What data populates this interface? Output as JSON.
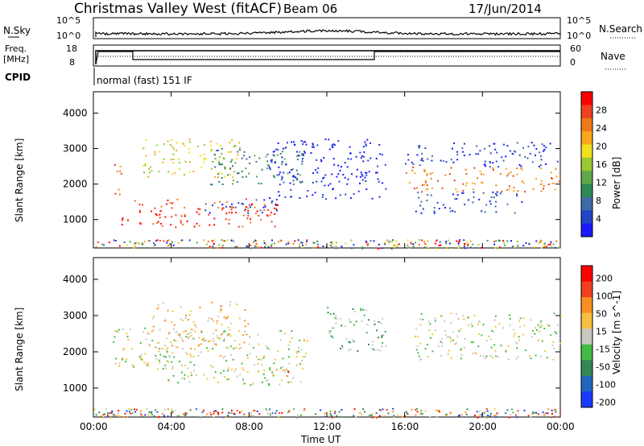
{
  "header": {
    "site": "Christmas Valley West (fitACF)",
    "beam": "Beam 06",
    "date": "17/Jun/2014"
  },
  "top_panels": {
    "nsky_label": "N.Sky",
    "nsky_ticks": [
      "10^5",
      "10^0"
    ],
    "nsearch_label": "N.Search",
    "nsearch_ticks": [
      "10^5",
      "10^0"
    ],
    "freq_label": "Freq.",
    "freq_unit": "[MHz]",
    "freq_ticks": [
      "18",
      "8"
    ],
    "nave_label": "Nave",
    "nave_ticks": [
      "60",
      "0"
    ],
    "cpid_label": "CPID",
    "cpid_mode": "normal (fast) 151 IF"
  },
  "chart_data": [
    {
      "type": "heatmap",
      "name": "power",
      "ylabel": "Slant Range [km]",
      "xlabel": "",
      "x_ticks": [
        "00:00",
        "04:00",
        "08:00",
        "12:00",
        "16:00",
        "20:00",
        "00:00"
      ],
      "y_ticks": [
        1000,
        2000,
        3000,
        4000
      ],
      "ylim": [
        200,
        4600
      ],
      "xlim_hours": [
        0,
        24
      ],
      "colorbar": {
        "label": "Power [dB]",
        "ticks": [
          "4",
          "8",
          "12",
          "16",
          "20",
          "24",
          "28"
        ],
        "colors": [
          "#1a1aff",
          "#2244c8",
          "#3f6aa8",
          "#2e8b57",
          "#5fa84a",
          "#99c830",
          "#f0e020",
          "#f8a818",
          "#f07818",
          "#f04020",
          "#ff0000"
        ]
      },
      "echo_regions": [
        {
          "t0": 1.0,
          "t1": 1.4,
          "r0": 1500,
          "r1": 2700,
          "level": 8
        },
        {
          "t0": 1.4,
          "t1": 9.5,
          "r0": 800,
          "r1": 1600,
          "level": 9
        },
        {
          "t0": 2.5,
          "t1": 7.5,
          "r0": 2200,
          "r1": 3300,
          "level": 6
        },
        {
          "t0": 6.0,
          "t1": 11.0,
          "r0": 2000,
          "r1": 3100,
          "level": 3
        },
        {
          "t0": 5.5,
          "t1": 9.5,
          "r0": 1200,
          "r1": 1600,
          "level": 1
        },
        {
          "t0": 9.0,
          "t1": 15.0,
          "r0": 1600,
          "r1": 3300,
          "level": 0
        },
        {
          "t0": 16.0,
          "t1": 24.0,
          "r0": 1800,
          "r1": 2500,
          "level": 8
        },
        {
          "t0": 16.0,
          "t1": 24.0,
          "r0": 2500,
          "r1": 3200,
          "level": 1
        },
        {
          "t0": 16.5,
          "t1": 22.0,
          "r0": 1200,
          "r1": 1800,
          "level": 1
        }
      ]
    },
    {
      "type": "heatmap",
      "name": "velocity",
      "ylabel": "Slant Range [km]",
      "xlabel": "Time UT",
      "x_ticks": [
        "00:00",
        "04:00",
        "08:00",
        "12:00",
        "16:00",
        "20:00",
        "00:00"
      ],
      "y_ticks": [
        1000,
        2000,
        3000,
        4000
      ],
      "ylim": [
        200,
        4600
      ],
      "xlim_hours": [
        0,
        24
      ],
      "colorbar": {
        "label": "Velocity [m s^-1]",
        "ticks": [
          "200",
          "100",
          "50",
          "15",
          "-15",
          "-50",
          "-100",
          "-200"
        ],
        "colors": [
          "#1a3aff",
          "#2266c0",
          "#338855",
          "#44bb44",
          "#c8c8c0",
          "#f8c040",
          "#f89020",
          "#f04020",
          "#ff0000"
        ]
      },
      "echo_regions": [
        {
          "t0": 1.0,
          "t1": 4.0,
          "r0": 1500,
          "r1": 2700,
          "level": 4
        },
        {
          "t0": 3.5,
          "t1": 11.0,
          "r0": 1100,
          "r1": 2600,
          "level": 4
        },
        {
          "t0": 3.0,
          "t1": 8.0,
          "r0": 2100,
          "r1": 3400,
          "level": 5
        },
        {
          "t0": 8.5,
          "t1": 10.0,
          "r0": 1350,
          "r1": 1550,
          "level": 7
        },
        {
          "t0": 16.5,
          "t1": 24.0,
          "r0": 1800,
          "r1": 3100,
          "level": 4
        },
        {
          "t0": 12.0,
          "t1": 15.0,
          "r0": 2000,
          "r1": 3300,
          "level": 3
        }
      ]
    }
  ]
}
